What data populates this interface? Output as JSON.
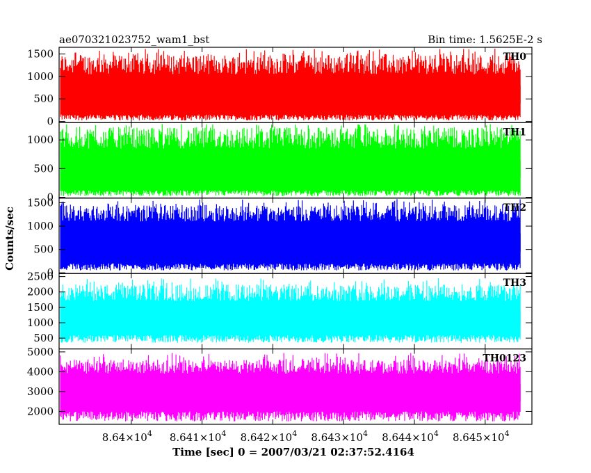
{
  "header": {
    "title": "ae070321023752_wam1_bst",
    "bin_time": "Bin time: 1.5625E-2 s"
  },
  "chart_data": {
    "type": "line",
    "title": "ae070321023752_wam1_bst",
    "subtitle": "Bin time: 1.5625E-2 s",
    "xlabel": "Time [sec] 0 = 2007/03/21 02:37:52.4164",
    "ylabel": "Counts/sec",
    "xlim": [
      86389.8,
      86456.6
    ],
    "data_xlim": [
      86390.0,
      86455.0
    ],
    "x_ticks": [
      86400,
      86410,
      86420,
      86430,
      86440,
      86450
    ],
    "x_tick_labels": [
      {
        "mantissa": "8.64",
        "exp": "4"
      },
      {
        "mantissa": "8.641",
        "exp": "4"
      },
      {
        "mantissa": "8.642",
        "exp": "4"
      },
      {
        "mantissa": "8.643",
        "exp": "4"
      },
      {
        "mantissa": "8.644",
        "exp": "4"
      },
      {
        "mantissa": "8.645",
        "exp": "4"
      }
    ],
    "grid": false,
    "panels": [
      {
        "name": "TH0",
        "color": "#ff0000",
        "ylim": [
          -30,
          1650
        ],
        "y_ticks": [
          0,
          500,
          1000,
          1500
        ],
        "y_tick_labels": [
          "0",
          "500",
          "1000",
          "1500"
        ],
        "low_range": [
          20,
          150
        ],
        "mid_range": [
          400,
          800
        ],
        "high_range": [
          1050,
          1500
        ],
        "peak_max": 1620
      },
      {
        "name": "TH1",
        "color": "#00ff00",
        "ylim": [
          -15,
          1300
        ],
        "y_ticks": [
          0,
          500,
          1000
        ],
        "y_tick_labels": [
          "0",
          "500",
          "1000"
        ],
        "low_range": [
          20,
          120
        ],
        "mid_range": [
          350,
          650
        ],
        "high_range": [
          850,
          1220
        ],
        "peak_max": 1280
      },
      {
        "name": "TH2",
        "color": "#0000ff",
        "ylim": [
          -15,
          1600
        ],
        "y_ticks": [
          0,
          500,
          1000,
          1500
        ],
        "y_tick_labels": [
          "0",
          "500",
          "1000",
          "1500"
        ],
        "low_range": [
          50,
          200
        ],
        "mid_range": [
          450,
          850
        ],
        "high_range": [
          1100,
          1450
        ],
        "peak_max": 1580
      },
      {
        "name": "TH3",
        "color": "#00ffff",
        "ylim": [
          150,
          2600
        ],
        "y_ticks": [
          500,
          1000,
          1500,
          2000,
          2500
        ],
        "y_tick_labels": [
          "500",
          "1000",
          "1500",
          "2000",
          "2500"
        ],
        "low_range": [
          350,
          600
        ],
        "mid_range": [
          900,
          1400
        ],
        "high_range": [
          1700,
          2250
        ],
        "peak_max": 2450
      },
      {
        "name": "TH0123",
        "color": "#ff00ff",
        "ylim": [
          1350,
          5150
        ],
        "y_ticks": [
          2000,
          3000,
          4000,
          5000
        ],
        "y_tick_labels": [
          "2000",
          "3000",
          "4000",
          "5000"
        ],
        "low_range": [
          1500,
          2000
        ],
        "mid_range": [
          2500,
          3400
        ],
        "high_range": [
          3900,
          4600
        ],
        "peak_max": 4950
      }
    ]
  }
}
